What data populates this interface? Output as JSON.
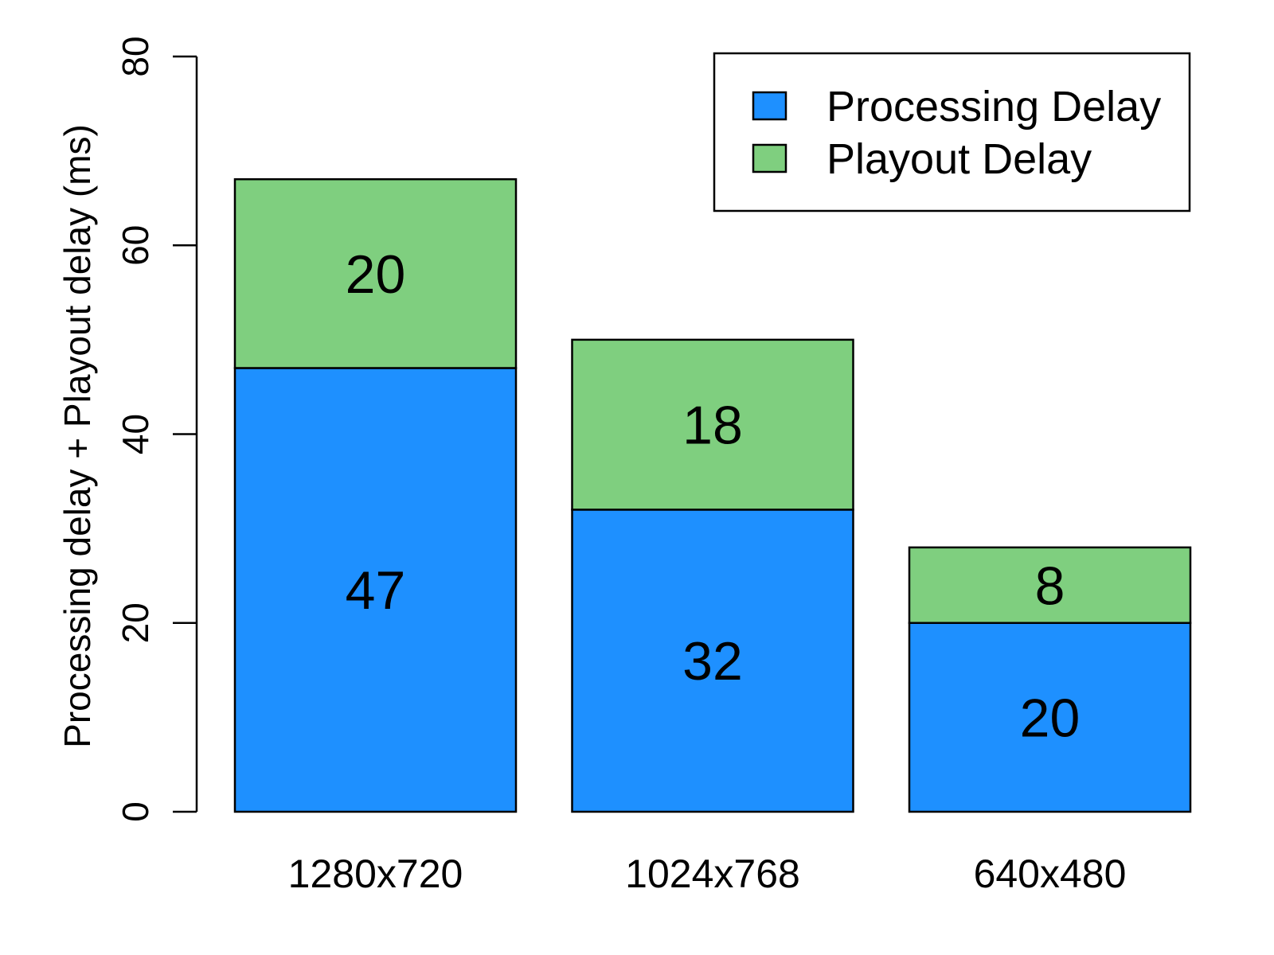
{
  "chart_data": {
    "type": "bar",
    "stacked": true,
    "title": "",
    "xlabel": "",
    "ylabel": "Processing delay + Playout delay (ms)",
    "ylim": [
      0,
      80
    ],
    "yticks": [
      0,
      20,
      40,
      60,
      80
    ],
    "categories": [
      "1280x720",
      "1024x768",
      "640x480"
    ],
    "series": [
      {
        "name": "Processing Delay",
        "values": [
          47,
          32,
          20
        ],
        "color": "#1E90FF"
      },
      {
        "name": "Playout Delay",
        "values": [
          20,
          18,
          8
        ],
        "color": "#7FCF7F"
      }
    ],
    "data_labels": true,
    "legend_position": "top-right",
    "grid": false
  }
}
